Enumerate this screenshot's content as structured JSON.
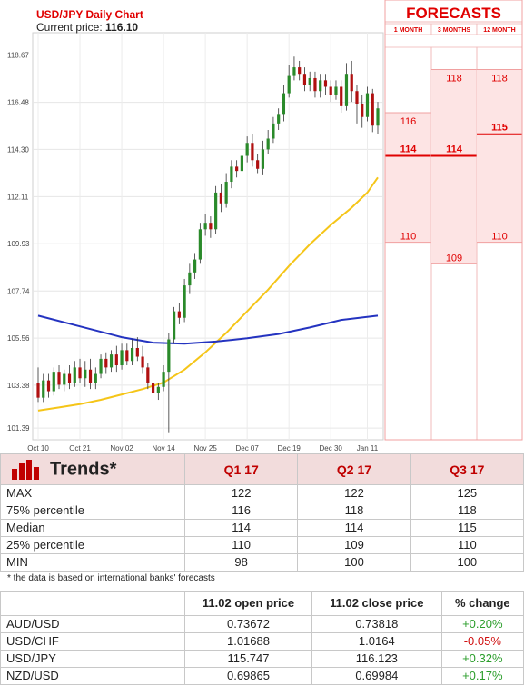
{
  "chart_data": {
    "type": "candlestick",
    "title": "USD/JPY Daily Chart",
    "current_price_label": "Current price:",
    "current_price": "116.10",
    "y_ticks": [
      "118.67",
      "116.48",
      "114.30",
      "112.11",
      "109.93",
      "107.74",
      "105.56",
      "103.38",
      "101.39"
    ],
    "y_tick_values": [
      118.67,
      116.48,
      114.3,
      112.11,
      109.93,
      107.74,
      105.56,
      103.38,
      101.39
    ],
    "ylim": [
      100.85,
      119.45
    ],
    "x_ticks": [
      "Oct 10",
      "Oct 21",
      "Nov 02",
      "Nov 14",
      "Nov 25",
      "Dec 07",
      "Dec 19",
      "Dec 30",
      "Jan 11"
    ],
    "grid": true,
    "candles": [
      [
        103.5,
        102.8,
        104.2,
        102.6
      ],
      [
        102.8,
        103.6,
        103.9,
        102.6
      ],
      [
        103.6,
        103.1,
        103.9,
        102.8
      ],
      [
        103.1,
        104.0,
        104.2,
        102.9
      ],
      [
        104.0,
        103.4,
        104.3,
        103.2
      ],
      [
        103.4,
        103.9,
        104.1,
        103.1
      ],
      [
        103.9,
        103.5,
        104.3,
        103.2
      ],
      [
        103.5,
        104.2,
        104.5,
        103.3
      ],
      [
        104.2,
        103.7,
        104.6,
        103.5
      ],
      [
        103.7,
        104.1,
        104.5,
        103.3
      ],
      [
        104.1,
        103.5,
        104.6,
        103.2
      ],
      [
        103.5,
        103.9,
        104.2,
        103.2
      ],
      [
        103.9,
        104.6,
        104.8,
        103.7
      ],
      [
        104.6,
        104.2,
        104.9,
        103.9
      ],
      [
        104.2,
        104.8,
        105.0,
        104.0
      ],
      [
        104.8,
        104.3,
        105.2,
        104.0
      ],
      [
        104.3,
        105.0,
        105.3,
        104.1
      ],
      [
        105.0,
        104.5,
        105.3,
        104.3
      ],
      [
        104.5,
        105.1,
        105.5,
        104.3
      ],
      [
        105.1,
        104.7,
        105.6,
        104.5
      ],
      [
        104.7,
        104.2,
        105.2,
        103.9
      ],
      [
        104.2,
        103.5,
        104.4,
        103.2
      ],
      [
        103.5,
        103.0,
        103.8,
        102.8
      ],
      [
        103.0,
        103.3,
        103.5,
        102.7
      ],
      [
        103.3,
        104.0,
        104.3,
        103.1
      ],
      [
        104.0,
        105.5,
        105.8,
        101.2
      ],
      [
        105.5,
        106.8,
        107.0,
        105.3
      ],
      [
        106.8,
        106.5,
        107.2,
        106.2
      ],
      [
        106.5,
        108.0,
        108.3,
        106.3
      ],
      [
        108.0,
        108.6,
        109.0,
        107.6
      ],
      [
        108.6,
        109.2,
        109.5,
        108.3
      ],
      [
        109.2,
        110.6,
        110.9,
        109.0
      ],
      [
        110.6,
        110.9,
        111.3,
        110.3
      ],
      [
        110.9,
        110.6,
        111.2,
        110.2
      ],
      [
        110.6,
        112.3,
        112.6,
        110.4
      ],
      [
        112.3,
        111.8,
        112.7,
        111.4
      ],
      [
        111.8,
        112.8,
        113.2,
        111.6
      ],
      [
        112.8,
        113.5,
        113.8,
        112.5
      ],
      [
        113.5,
        113.3,
        113.8,
        113.0
      ],
      [
        113.3,
        114.0,
        114.3,
        113.1
      ],
      [
        114.0,
        114.6,
        114.9,
        113.7
      ],
      [
        114.6,
        113.8,
        115.0,
        113.5
      ],
      [
        113.8,
        113.4,
        114.1,
        113.2
      ],
      [
        113.4,
        114.3,
        114.7,
        113.1
      ],
      [
        114.3,
        114.8,
        115.2,
        114.1
      ],
      [
        114.8,
        115.5,
        115.8,
        114.6
      ],
      [
        115.5,
        115.9,
        116.2,
        115.2
      ],
      [
        115.9,
        116.9,
        117.3,
        115.6
      ],
      [
        116.9,
        117.7,
        118.2,
        116.7
      ],
      [
        117.7,
        118.1,
        118.6,
        117.5
      ],
      [
        118.1,
        117.8,
        118.4,
        117.5
      ],
      [
        117.8,
        117.3,
        118.1,
        117.0
      ],
      [
        117.3,
        117.6,
        117.9,
        117.0
      ],
      [
        117.6,
        117.0,
        117.9,
        116.7
      ],
      [
        117.0,
        117.5,
        117.8,
        116.7
      ],
      [
        117.5,
        117.2,
        117.8,
        116.8
      ],
      [
        117.2,
        116.8,
        117.5,
        116.5
      ],
      [
        116.8,
        117.2,
        117.5,
        116.6
      ],
      [
        117.2,
        116.3,
        117.5,
        116.0
      ],
      [
        116.3,
        117.8,
        118.3,
        116.1
      ],
      [
        117.8,
        117.0,
        118.4,
        116.5
      ],
      [
        117.0,
        116.4,
        117.3,
        115.5
      ],
      [
        116.4,
        115.8,
        116.8,
        115.3
      ],
      [
        115.8,
        116.9,
        117.2,
        115.6
      ],
      [
        116.9,
        115.4,
        117.1,
        115.1
      ],
      [
        115.4,
        116.2,
        116.5,
        115.0
      ]
    ],
    "ma_fast": [
      [
        0,
        102.2
      ],
      [
        4,
        102.35
      ],
      [
        8,
        102.5
      ],
      [
        12,
        102.7
      ],
      [
        16,
        102.95
      ],
      [
        20,
        103.2
      ],
      [
        24,
        103.5
      ],
      [
        28,
        104.1
      ],
      [
        32,
        104.9
      ],
      [
        36,
        105.8
      ],
      [
        40,
        106.8
      ],
      [
        44,
        107.8
      ],
      [
        48,
        108.9
      ],
      [
        52,
        109.9
      ],
      [
        56,
        110.8
      ],
      [
        60,
        111.6
      ],
      [
        63,
        112.3
      ],
      [
        65,
        113.0
      ]
    ],
    "ma_slow": [
      [
        0,
        106.6
      ],
      [
        8,
        106.1
      ],
      [
        16,
        105.6
      ],
      [
        22,
        105.35
      ],
      [
        28,
        105.3
      ],
      [
        34,
        105.4
      ],
      [
        40,
        105.55
      ],
      [
        46,
        105.75
      ],
      [
        52,
        106.05
      ],
      [
        58,
        106.4
      ],
      [
        65,
        106.6
      ]
    ]
  },
  "forecasts": {
    "title": "FORECASTS",
    "columns": [
      "1 MONTH",
      "3 MONTHS",
      "12 MONTH"
    ],
    "ranges": [
      {
        "high": 116,
        "median": 114,
        "low": 110
      },
      {
        "high": 118,
        "median": 114,
        "low": 109
      },
      {
        "high": 118,
        "median": 115,
        "low": 110
      }
    ],
    "high_labels": [
      "116",
      "118",
      "118"
    ],
    "median_labels": [
      "114",
      "114",
      "115"
    ],
    "low_labels": [
      "110",
      "109",
      "110"
    ]
  },
  "trends": {
    "header": "Trends*",
    "columns": [
      "Q1 17",
      "Q2 17",
      "Q3 17"
    ],
    "rows": [
      {
        "label": "MAX",
        "values": [
          "122",
          "122",
          "125"
        ]
      },
      {
        "label": "75% percentile",
        "values": [
          "116",
          "118",
          "118"
        ]
      },
      {
        "label": "Median",
        "values": [
          "114",
          "114",
          "115"
        ]
      },
      {
        "label": "25% percentile",
        "values": [
          "110",
          "109",
          "110"
        ]
      },
      {
        "label": "MIN",
        "values": [
          "98",
          "100",
          "100"
        ]
      }
    ],
    "note": "* the data is based on international banks' forecasts"
  },
  "prices": {
    "columns": [
      "11.02 open price",
      "11.02 close price",
      "% change"
    ],
    "rows": [
      {
        "pair": "AUD/USD",
        "open": "0.73672",
        "close": "0.73818",
        "change": "+0.20%",
        "dir": "pos"
      },
      {
        "pair": "USD/CHF",
        "open": "1.01688",
        "close": "1.0164",
        "change": "-0.05%",
        "dir": "neg"
      },
      {
        "pair": "USD/JPY",
        "open": "115.747",
        "close": "116.123",
        "change": "+0.32%",
        "dir": "pos"
      },
      {
        "pair": "NZD/USD",
        "open": "0.69865",
        "close": "0.69984",
        "change": "+0.17%",
        "dir": "pos"
      }
    ]
  },
  "colors": {
    "up": "#2a8a2a",
    "down": "#b01010",
    "ma_fast": "#f5c518",
    "ma_slow": "#2433c0",
    "accent_red": "#e00000",
    "forecast_fill": "#fde4e4"
  }
}
